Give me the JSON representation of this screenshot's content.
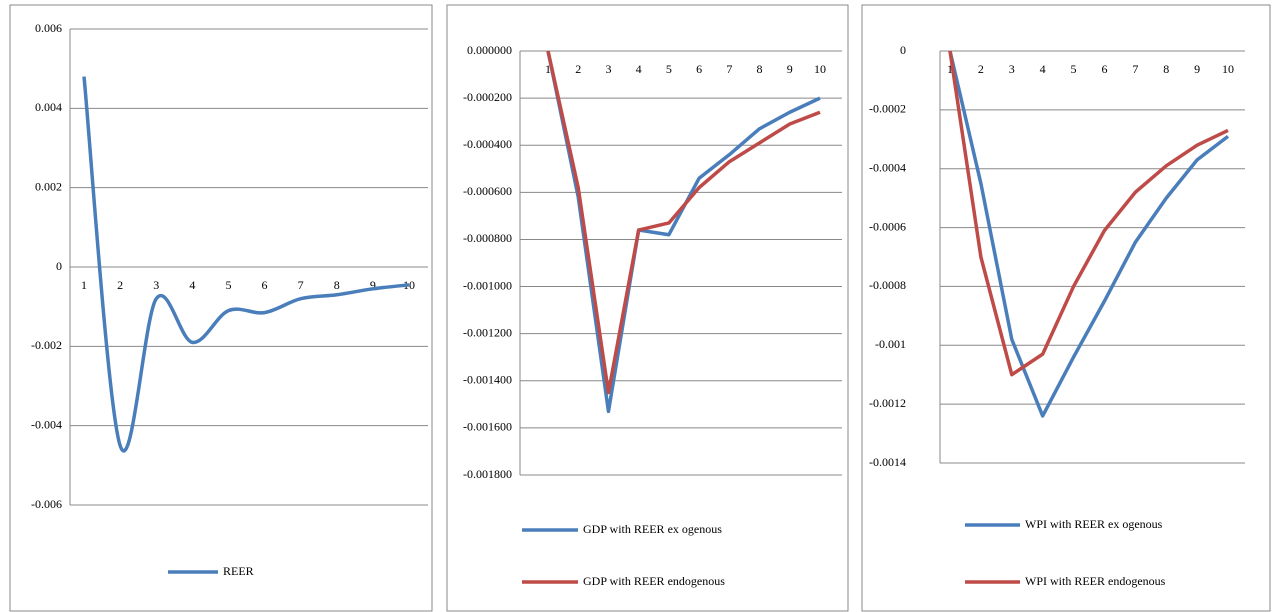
{
  "chart_data": [
    {
      "type": "line",
      "smooth": true,
      "categories": [
        "1",
        "2",
        "3",
        "4",
        "5",
        "6",
        "7",
        "8",
        "9",
        "10"
      ],
      "series": [
        {
          "name": "REER",
          "color": "#4a7ebb",
          "values": [
            0.0048,
            -0.0045,
            -0.0008,
            -0.0019,
            -0.0011,
            -0.00115,
            -0.0008,
            -0.0007,
            -0.00055,
            -0.00045
          ]
        }
      ],
      "ylim": [
        -0.006,
        0.006
      ],
      "yticks": [
        -0.006,
        -0.004,
        -0.002,
        0,
        0.002,
        0.004,
        0.006
      ],
      "grid": true
    },
    {
      "type": "line",
      "smooth": false,
      "categories": [
        "1",
        "2",
        "3",
        "4",
        "5",
        "6",
        "7",
        "8",
        "9",
        "10"
      ],
      "series": [
        {
          "name": "GDP with REER ex ogenous",
          "color": "#4a7ebb",
          "values": [
            0,
            -0.00062,
            -0.00153,
            -0.00076,
            -0.00078,
            -0.00054,
            -0.00044,
            -0.00033,
            -0.00026,
            -0.0002
          ]
        },
        {
          "name": "GDP with REER endogenous",
          "color": "#be4b48",
          "values": [
            0,
            -0.00058,
            -0.00145,
            -0.00076,
            -0.00073,
            -0.00058,
            -0.00047,
            -0.00039,
            -0.00031,
            -0.00026
          ]
        }
      ],
      "ylim": [
        -0.0018,
        0
      ],
      "yticks": [
        {
          "value": -0.0018,
          "label": "-0.001800"
        },
        {
          "value": -0.0016,
          "label": "-0.001600"
        },
        {
          "value": -0.0014,
          "label": "-0.001400"
        },
        {
          "value": -0.0012,
          "label": "-0.001200"
        },
        {
          "value": -0.001,
          "label": "-0.001000"
        },
        {
          "value": -0.0008,
          "label": "-0.000800"
        },
        {
          "value": -0.0006,
          "label": "-0.000600"
        },
        {
          "value": -0.0004,
          "label": "-0.000400"
        },
        {
          "value": -0.0002,
          "label": "-0.000200"
        },
        {
          "value": 0,
          "label": "0.000000"
        }
      ],
      "grid": true
    },
    {
      "type": "line",
      "smooth": false,
      "categories": [
        "1",
        "2",
        "3",
        "4",
        "5",
        "6",
        "7",
        "8",
        "9",
        "10"
      ],
      "series": [
        {
          "name": "WPI with REER ex ogenous",
          "color": "#4a7ebb",
          "values": [
            0,
            -0.00045,
            -0.00098,
            -0.00124,
            -0.00104,
            -0.00085,
            -0.00065,
            -0.0005,
            -0.00037,
            -0.00029
          ]
        },
        {
          "name": "WPI with REER endogenous",
          "color": "#be4b48",
          "values": [
            0,
            -0.0007,
            -0.0011,
            -0.00103,
            -0.0008,
            -0.00061,
            -0.00048,
            -0.00039,
            -0.00032,
            -0.00027
          ]
        }
      ],
      "ylim": [
        -0.0014,
        0
      ],
      "yticks": [
        -0.0014,
        -0.0012,
        -0.001,
        -0.0008,
        -0.0006,
        -0.0004,
        -0.0002,
        0
      ],
      "grid": true
    }
  ]
}
